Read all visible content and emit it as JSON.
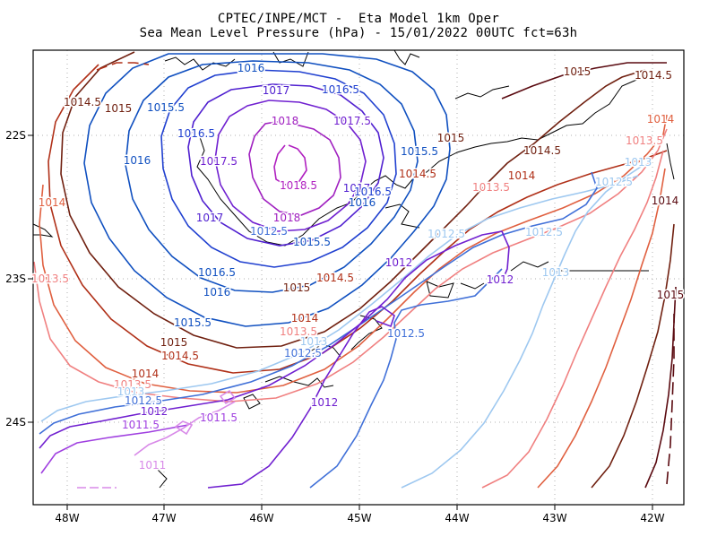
{
  "header": {
    "title_line1": "CPTEC/INPE/MCT -  Eta Model 1km Oper",
    "title_line2": "Sea Mean Level Pressure (hPa) - 15/01/2022 00UTC fct=63h"
  },
  "axes": {
    "x_ticks": [
      "48W",
      "47W",
      "46W",
      "45W",
      "44W",
      "43W",
      "42W"
    ],
    "y_ticks": [
      "22S",
      "23S",
      "24S"
    ]
  },
  "colors": {
    "c1011": "#d88ae8",
    "c1011_5": "#a040e0",
    "c1012": "#7020d0",
    "c1012_5": "#4070d8",
    "c1013": "#9ec8f0",
    "c1013_5": "#f08080",
    "c1014": "#e06040",
    "c1014_5": "#b03018",
    "c1015": "#702010",
    "c1015_5": "#5a0a10",
    "c1016": "#1050c0",
    "c1016_5": "#2040d0",
    "c1017": "#5020d0",
    "c1017_5": "#7020d0",
    "c1018": "#a020c0",
    "c1018_5": "#b020c0",
    "coast": "#000000"
  },
  "contour_labels": [
    {
      "text": "1016",
      "color": "c1016"
    },
    {
      "text": "1017",
      "color": "c1017"
    },
    {
      "text": "1016.5",
      "color": "c1016_5"
    },
    {
      "text": "1014.5",
      "color": "c1015"
    },
    {
      "text": "1015",
      "color": "c1015"
    },
    {
      "text": "1015.5",
      "color": "c1016"
    },
    {
      "text": "1018",
      "color": "c1018"
    },
    {
      "text": "1017.5",
      "color": "c1017_5"
    },
    {
      "text": "1016.5",
      "color": "c1016_5"
    },
    {
      "text": "1016",
      "color": "c1016"
    },
    {
      "text": "1017.5",
      "color": "c1017_5"
    },
    {
      "text": "1015",
      "color": "c1015"
    },
    {
      "text": "1015.5",
      "color": "c1016"
    },
    {
      "text": "1014.5",
      "color": "c1015"
    },
    {
      "text": "1015",
      "color": "c1015"
    },
    {
      "text": "1014.5",
      "color": "c1015"
    },
    {
      "text": "1014",
      "color": "c1014"
    },
    {
      "text": "1013.5",
      "color": "c1013_5"
    },
    {
      "text": "1013",
      "color": "c1013"
    },
    {
      "text": "1018.5",
      "color": "c1018_5"
    },
    {
      "text": "1017",
      "color": "c1017"
    },
    {
      "text": "1016.5",
      "color": "c1016_5"
    },
    {
      "text": "1016",
      "color": "c1016"
    },
    {
      "text": "1014.5",
      "color": "c1014_5"
    },
    {
      "text": "1014",
      "color": "c1014_5"
    },
    {
      "text": "1013.5",
      "color": "c1013_5"
    },
    {
      "text": "1012.5",
      "color": "c1013"
    },
    {
      "text": "1014",
      "color": "c1014"
    },
    {
      "text": "1017",
      "color": "c1017"
    },
    {
      "text": "1018",
      "color": "c1018"
    },
    {
      "text": "1012.5",
      "color": "c1012_5"
    },
    {
      "text": "1015.5",
      "color": "c1016"
    },
    {
      "text": "1012.5",
      "color": "c1013"
    },
    {
      "text": "1012.5",
      "color": "c1013"
    },
    {
      "text": "1014",
      "color": "c1015_5"
    },
    {
      "text": "1013.5",
      "color": "c1013_5"
    },
    {
      "text": "1012",
      "color": "c1012"
    },
    {
      "text": "1016.5",
      "color": "c1016"
    },
    {
      "text": "1015",
      "color": "c1015"
    },
    {
      "text": "1014.5",
      "color": "c1014_5"
    },
    {
      "text": "1012",
      "color": "c1012"
    },
    {
      "text": "1013",
      "color": "c1013"
    },
    {
      "text": "1015",
      "color": "c1015_5"
    },
    {
      "text": "1016",
      "color": "c1016"
    },
    {
      "text": "1015.5",
      "color": "c1016"
    },
    {
      "text": "1014",
      "color": "c1014_5"
    },
    {
      "text": "1013.5",
      "color": "c1013_5"
    },
    {
      "text": "1013",
      "color": "c1013"
    },
    {
      "text": "1012.5",
      "color": "c1012_5"
    },
    {
      "text": "1015",
      "color": "c1015"
    },
    {
      "text": "1014.5",
      "color": "c1014_5"
    },
    {
      "text": "1012.5",
      "color": "c1012_5"
    },
    {
      "text": "1014",
      "color": "c1014_5"
    },
    {
      "text": "1013.5",
      "color": "c1013_5"
    },
    {
      "text": "1013",
      "color": "c1013"
    },
    {
      "text": "1012.5",
      "color": "c1012_5"
    },
    {
      "text": "1012",
      "color": "c1012"
    },
    {
      "text": "1011.5",
      "color": "c1011_5"
    },
    {
      "text": "1012",
      "color": "c1012"
    },
    {
      "text": "1011.5",
      "color": "c1011_5"
    },
    {
      "text": "1011",
      "color": "c1011"
    }
  ]
}
